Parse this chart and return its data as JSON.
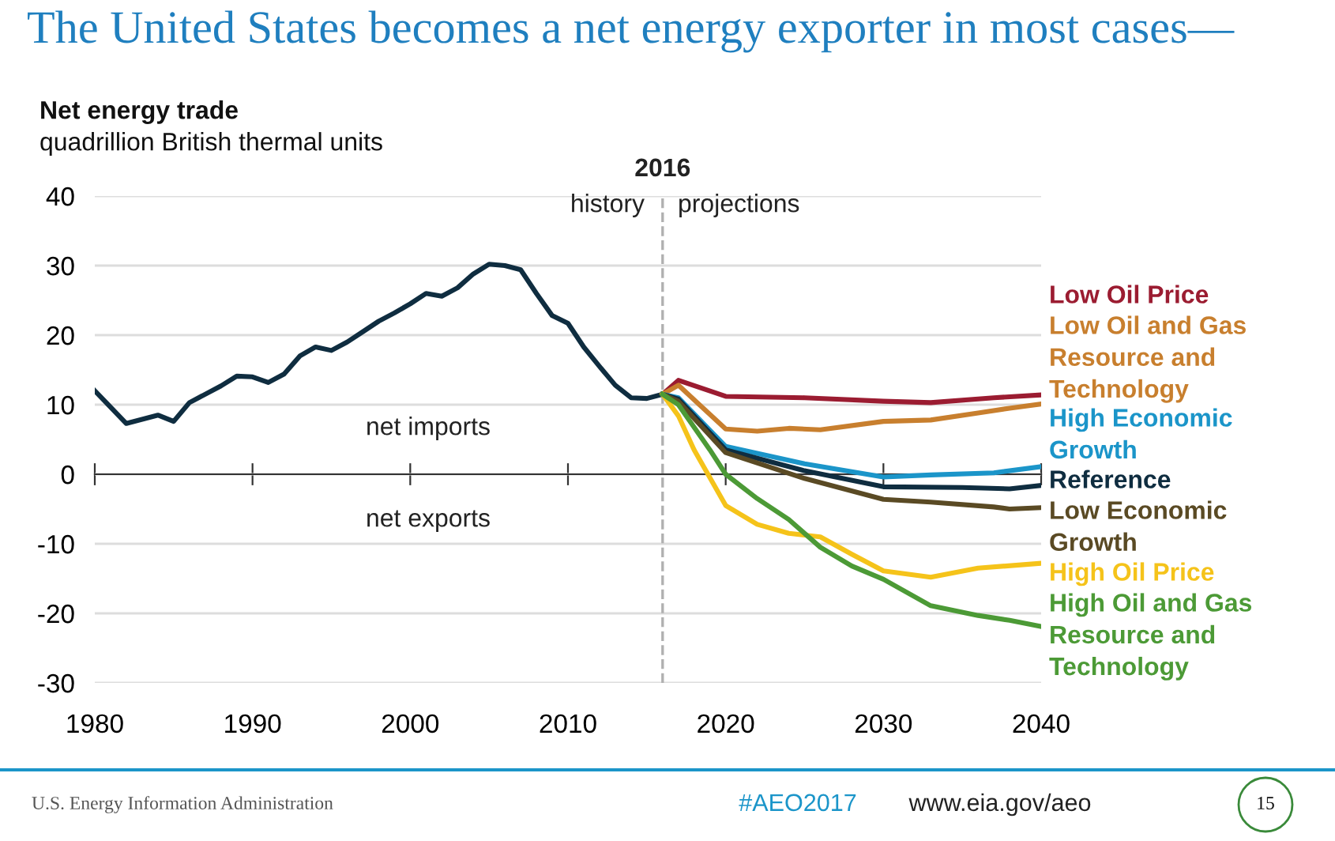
{
  "chart_data": {
    "type": "line",
    "title": "The United States becomes a net energy exporter in most cases—",
    "subtitle": "Net energy trade",
    "ylabel": "quadrillion British thermal units",
    "xlim": [
      1980,
      2040
    ],
    "xticks": [
      1980,
      1990,
      2000,
      2010,
      2020,
      2030,
      2040
    ],
    "ylim": [
      -30,
      40
    ],
    "yticks": [
      -30,
      -20,
      -10,
      0,
      10,
      20,
      30,
      40
    ],
    "grid": "y",
    "line_style": "solid",
    "marker": "none",
    "ref_lines": [
      {
        "axis": "x",
        "value": 2016,
        "label": "2016",
        "color": "#b0b0b0",
        "line_style": "dashed"
      }
    ],
    "annotations": [
      "history",
      "projections",
      "net imports",
      "net exports",
      "U.S. Energy Information Administration",
      "#AEO2017",
      "www.eia.gov/aeo",
      "15"
    ],
    "series": [
      {
        "color": "#0f2d40",
        "x": [
          1980,
          1982,
          1984,
          1985,
          1986,
          1988,
          1989,
          1990,
          1991,
          1992,
          1993,
          1994,
          1995,
          1996,
          1997,
          1998,
          1999,
          2000,
          2001,
          2002,
          2003,
          2004,
          2005,
          2006,
          2007,
          2008,
          2009,
          2010,
          2011,
          2012,
          2013,
          2014,
          2015,
          2016
        ],
        "values": [
          12.0,
          7.3,
          8.5,
          7.6,
          10.3,
          12.7,
          14.1,
          14.0,
          13.2,
          14.4,
          17.0,
          18.3,
          17.8,
          19.0,
          20.5,
          22.0,
          23.2,
          24.5,
          26.0,
          25.6,
          26.8,
          28.8,
          30.2,
          30.0,
          29.4,
          26.0,
          22.8,
          21.7,
          18.3,
          15.5,
          12.8,
          11.0,
          10.9,
          11.5
        ]
      },
      {
        "name": "Low Oil Price",
        "color": "#9b1c31",
        "x": [
          2016,
          2017,
          2020,
          2025,
          2030,
          2033,
          2037,
          2040
        ],
        "values": [
          11.5,
          13.5,
          11.2,
          11.0,
          10.5,
          10.3,
          11.0,
          11.4
        ]
      },
      {
        "name": "Low Oil and Gas\nResource and\nTechnology",
        "color": "#c87f2e",
        "x": [
          2016,
          2017,
          2020,
          2022,
          2024,
          2026,
          2030,
          2033,
          2036,
          2038,
          2040
        ],
        "values": [
          11.5,
          12.8,
          6.5,
          6.2,
          6.6,
          6.4,
          7.6,
          7.8,
          8.8,
          9.5,
          10.1
        ]
      },
      {
        "name": "High Economic\nGrowth",
        "color": "#1b95c9",
        "x": [
          2016,
          2017,
          2020,
          2025,
          2030,
          2033,
          2037,
          2040
        ],
        "values": [
          11.5,
          11.0,
          4.0,
          1.5,
          -0.4,
          -0.1,
          0.2,
          1.1
        ]
      },
      {
        "name": "Reference",
        "color": "#0f2d40",
        "x": [
          2016,
          2017,
          2020,
          2025,
          2030,
          2035,
          2038,
          2040
        ],
        "values": [
          11.5,
          10.8,
          3.5,
          0.5,
          -1.8,
          -1.9,
          -2.1,
          -1.6
        ]
      },
      {
        "name": "Low Economic\nGrowth",
        "color": "#5a4a24",
        "x": [
          2016,
          2017,
          2020,
          2025,
          2030,
          2033,
          2037,
          2038,
          2040
        ],
        "values": [
          11.5,
          10.5,
          3.1,
          -0.6,
          -3.6,
          -4.0,
          -4.7,
          -5.0,
          -4.8
        ]
      },
      {
        "name": "High Oil Price",
        "color": "#f5c31a",
        "x": [
          2016,
          2017,
          2018,
          2020,
          2022,
          2024,
          2026,
          2028,
          2030,
          2033,
          2036,
          2040
        ],
        "values": [
          11.5,
          8.4,
          3.5,
          -4.5,
          -7.2,
          -8.5,
          -9.0,
          -11.5,
          -13.9,
          -14.8,
          -13.5,
          -12.8
        ]
      },
      {
        "name": "High Oil and Gas\nResource and\nTechnology",
        "color": "#4c9a36",
        "x": [
          2016,
          2017,
          2019,
          2020,
          2022,
          2024,
          2026,
          2028,
          2030,
          2033,
          2036,
          2038,
          2040
        ],
        "values": [
          11.5,
          10.0,
          3.5,
          0.0,
          -3.5,
          -6.5,
          -10.5,
          -13.2,
          -15.1,
          -18.9,
          -20.3,
          -21.0,
          -21.9
        ]
      }
    ]
  }
}
